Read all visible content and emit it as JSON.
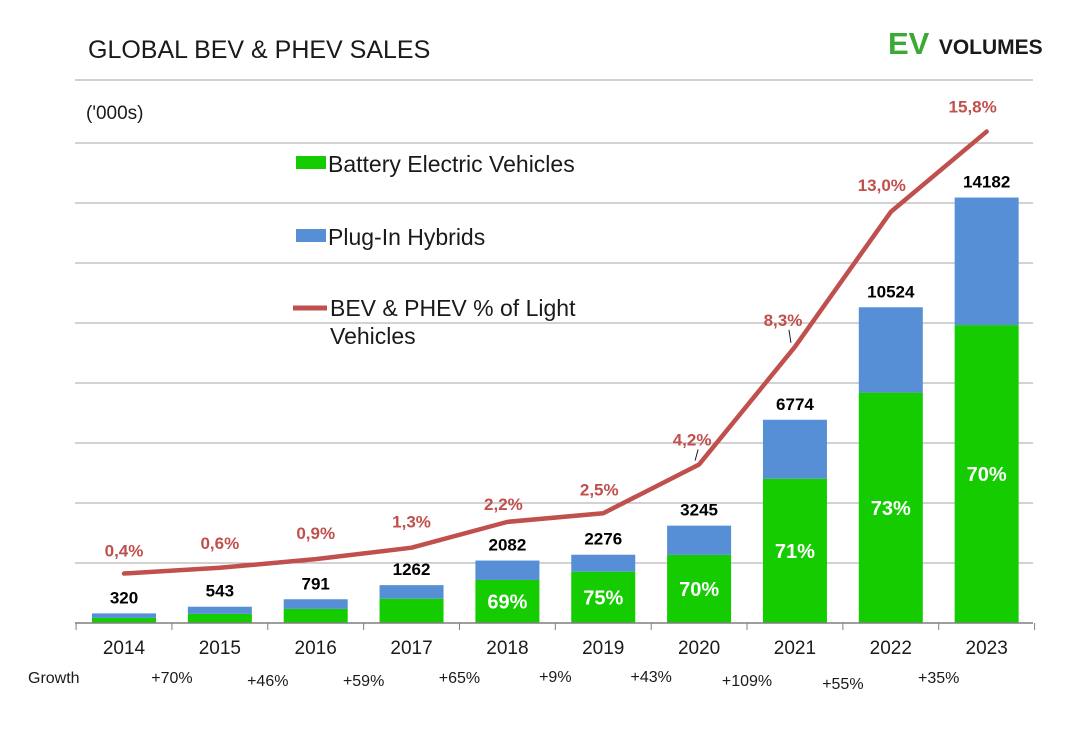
{
  "header": {
    "title": "GLOBAL BEV & PHEV SALES",
    "logo_ev": "EV",
    "logo_volumes": "VOLUMES",
    "unit": "('000s)"
  },
  "colors": {
    "bev": "#14cc00",
    "phev": "#568fd6",
    "line": "#c0504d",
    "logo_green": "#3aaa35",
    "grid": "#a6a6a6"
  },
  "chart_data": {
    "type": "bar",
    "stacked": true,
    "title": "GLOBAL BEV & PHEV SALES",
    "unit": "('000s)",
    "categories": [
      "2014",
      "2015",
      "2016",
      "2017",
      "2018",
      "2019",
      "2020",
      "2021",
      "2022",
      "2023"
    ],
    "series": [
      {
        "name": "Battery Electric Vehicles",
        "values": [
          170,
          305,
          470,
          810,
          1435,
          1710,
          2270,
          4810,
          7680,
          9930
        ]
      },
      {
        "name": "Plug-In Hybrids",
        "values": [
          150,
          238,
          321,
          452,
          647,
          566,
          975,
          1964,
          2844,
          4252
        ]
      }
    ],
    "totals": [
      "320",
      "543",
      "791",
      "1262",
      "2082",
      "2276",
      "3245",
      "6774",
      "10524",
      "14182"
    ],
    "bev_share_labels": [
      "",
      "",
      "",
      "",
      "69%",
      "75%",
      "70%",
      "71%",
      "73%",
      "70%"
    ],
    "line_series": {
      "name": "BEV & PHEV % of Light Vehicles",
      "values": [
        0.4,
        0.6,
        0.9,
        1.3,
        2.2,
        2.5,
        4.2,
        8.3,
        13.0,
        15.8
      ],
      "labels": [
        "0,4%",
        "0,6%",
        "0,9%",
        "1,3%",
        "2,2%",
        "2,5%",
        "4,2%",
        "8,3%",
        "13,0%",
        "15,8%"
      ]
    },
    "growth": {
      "label": "Growth",
      "values": [
        "+70%",
        "+46%",
        "+59%",
        "+65%",
        "+9%",
        "+43%",
        "+109%",
        "+55%",
        "+35%"
      ]
    },
    "legend": {
      "bev": "Battery Electric Vehicles",
      "phev": "Plug-In Hybrids",
      "line_line1": "BEV & PHEV % of Light",
      "line_line2": "Vehicles"
    },
    "ylim": [
      0,
      16000
    ],
    "grid": true
  }
}
